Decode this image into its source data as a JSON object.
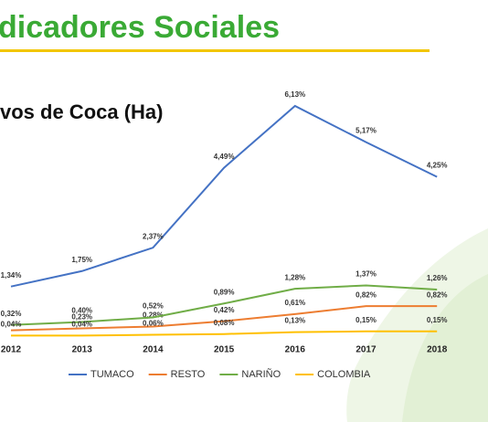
{
  "chart_data": {
    "type": "line",
    "title": "dicadores Sociales",
    "subtitle": "vos de Coca (Ha)",
    "categories": [
      "2012",
      "2013",
      "2014",
      "2015",
      "2016",
      "2017",
      "2018"
    ],
    "series": [
      {
        "name": "TUMACO",
        "color": "#4472c4",
        "values": [
          1.34,
          1.75,
          2.37,
          4.49,
          6.13,
          5.17,
          4.25
        ],
        "value_labels": [
          "1,34%",
          "1,75%",
          "2,37%",
          "4,49%",
          "6,13%",
          "5,17%",
          "4,25%"
        ]
      },
      {
        "name": "RESTO",
        "color": "#ed7d31",
        "values": [
          0.18,
          0.23,
          0.28,
          0.42,
          0.61,
          0.82,
          0.82
        ],
        "value_labels": [
          null,
          "0,23%",
          "0,28%",
          "0,42%",
          "0,61%",
          "0,82%",
          "0,82%"
        ]
      },
      {
        "name": "NARIÑO",
        "color": "#70ad47",
        "values": [
          0.32,
          0.4,
          0.52,
          0.89,
          1.28,
          1.37,
          1.26
        ],
        "value_labels": [
          "0,32%",
          "0,40%",
          "0,52%",
          "0,89%",
          "1,28%",
          "1,37%",
          "1,26%"
        ]
      },
      {
        "name": "COLOMBIA",
        "color": "#ffc000",
        "values": [
          0.04,
          0.04,
          0.06,
          0.08,
          0.13,
          0.15,
          0.15
        ],
        "value_labels": [
          "0,04%",
          "0,04%",
          "0,06%",
          "0,08%",
          "0,13%",
          "0,15%",
          "0,15%"
        ]
      }
    ]
  }
}
